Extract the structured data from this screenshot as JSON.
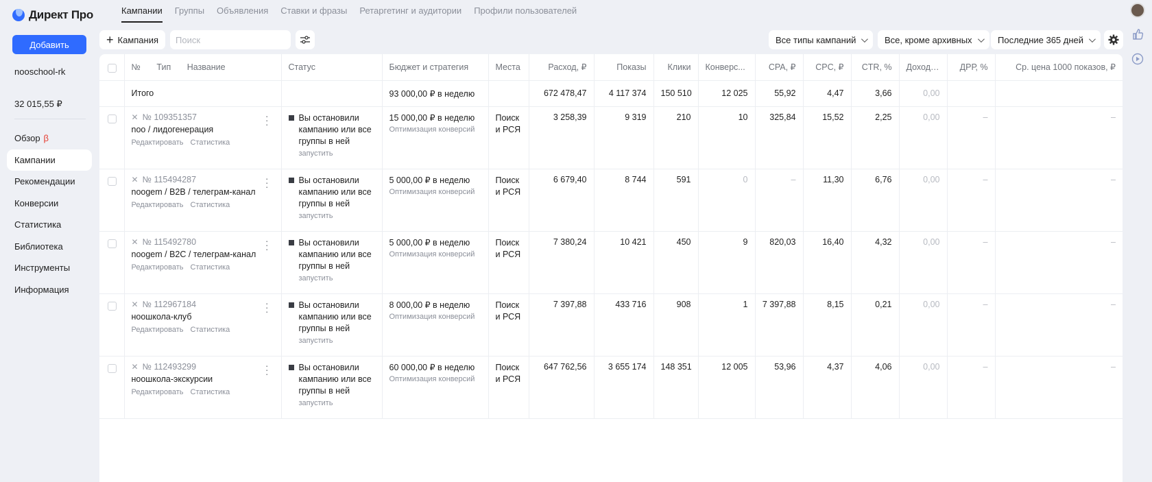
{
  "sidebar": {
    "logo": "Директ Про",
    "add_button": "Добавить",
    "account": "nooschool-rk",
    "balance": "32 015,55 ₽",
    "nav": [
      {
        "label": "Обзор",
        "badge": "β"
      },
      {
        "label": "Кампании",
        "active": true
      },
      {
        "label": "Рекомендации"
      },
      {
        "label": "Конверсии"
      },
      {
        "label": "Статистика"
      },
      {
        "label": "Библиотека"
      },
      {
        "label": "Инструменты"
      },
      {
        "label": "Информация"
      }
    ]
  },
  "tabs": [
    "Кампании",
    "Группы",
    "Объявления",
    "Ставки и фразы",
    "Ретаргетинг и аудитории",
    "Профили пользователей"
  ],
  "toolbar": {
    "add_campaign": "Кампания",
    "search_placeholder": "Поиск",
    "campaign_types": "Все типы кампаний",
    "archive_filter": "Все, кроме архивных",
    "period": "Последние 365 дней"
  },
  "table": {
    "headers": {
      "num": "№",
      "type": "Тип",
      "name": "Название",
      "status": "Статус",
      "budget": "Бюджет и стратегия",
      "places": "Места",
      "spend": "Расход, ₽",
      "impressions": "Показы",
      "clicks": "Клики",
      "conversions": "Конверс...",
      "cpa": "CPA, ₽",
      "cpc": "CPC, ₽",
      "ctr": "CTR, %",
      "income": "Доход,...",
      "drr": "ДРР, %",
      "cpm": "Ср. цена 1000 показов, ₽"
    },
    "total": {
      "label": "Итого",
      "budget": "93 000,00 ₽ в неделю",
      "spend": "672 478,47",
      "impressions": "4 117 374",
      "clicks": "150 510",
      "conversions": "12 025",
      "cpa": "55,92",
      "cpc": "4,47",
      "ctr": "3,66",
      "income": "0,00"
    },
    "row_labels": {
      "edit": "Редактировать",
      "stats": "Статистика",
      "status": "Вы остановили кампанию или все группы в ней",
      "start": "запустить",
      "strategy": "Оптимизация конверсий",
      "places": "Поиск и РСЯ",
      "dash": "–"
    },
    "rows": [
      {
        "id": "№ 109351357",
        "name": "noo / лидогенерация",
        "budget": "15 000,00 ₽ в неделю",
        "spend": "3 258,39",
        "impressions": "9 319",
        "clicks": "210",
        "conversions": "10",
        "cpa": "325,84",
        "cpc": "15,52",
        "ctr": "2,25",
        "income": "0,00"
      },
      {
        "id": "№ 115494287",
        "name": "noogem / B2B / телеграм-канал",
        "budget": "5 000,00 ₽ в неделю",
        "spend": "6 679,40",
        "impressions": "8 744",
        "clicks": "591",
        "conversions": "0",
        "cpa": "–",
        "cpc": "11,30",
        "ctr": "6,76",
        "income": "0,00"
      },
      {
        "id": "№ 115492780",
        "name": "noogem / B2C / телеграм-канал",
        "budget": "5 000,00 ₽ в неделю",
        "spend": "7 380,24",
        "impressions": "10 421",
        "clicks": "450",
        "conversions": "9",
        "cpa": "820,03",
        "cpc": "16,40",
        "ctr": "4,32",
        "income": "0,00"
      },
      {
        "id": "№ 112967184",
        "name": "ноошкола-клуб",
        "budget": "8 000,00 ₽ в неделю",
        "spend": "7 397,88",
        "impressions": "433 716",
        "clicks": "908",
        "conversions": "1",
        "cpa": "7 397,88",
        "cpc": "8,15",
        "ctr": "0,21",
        "income": "0,00"
      },
      {
        "id": "№ 112493299",
        "name": "ноошкола-экскурсии",
        "budget": "60 000,00 ₽ в неделю",
        "spend": "647 762,56",
        "impressions": "3 655 174",
        "clicks": "148 351",
        "conversions": "12 005",
        "cpa": "53,96",
        "cpc": "4,37",
        "ctr": "4,06",
        "income": "0,00"
      }
    ]
  }
}
